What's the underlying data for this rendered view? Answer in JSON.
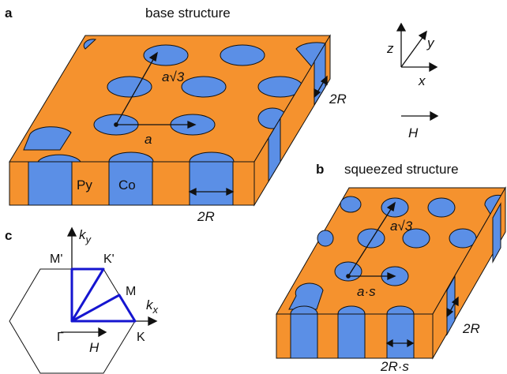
{
  "panel_a": {
    "letter": "a",
    "title": "base structure",
    "lattice_const": "a",
    "lattice_vec": "a√3",
    "radius_label": "2R",
    "py_label": "Py",
    "co_label": "Co",
    "diam_label": "2R"
  },
  "panel_b": {
    "letter": "b",
    "title": "squeezed structure",
    "lattice_const": "a·s",
    "lattice_vec": "a√3",
    "radius_label": "2R",
    "diam_label": "2R·s"
  },
  "panel_c": {
    "letter": "c",
    "ky_label": "k_y",
    "kx_label": "k_x",
    "gamma": "Γ",
    "K": "K",
    "K_prime": "K'",
    "M": "M",
    "M_prime": "M'",
    "field": "H"
  },
  "axes": {
    "z": "z",
    "y": "y",
    "x": "x",
    "field": "H"
  },
  "colors": {
    "py": "#F5922E",
    "co": "#5B8FE6",
    "outline": "#111111",
    "path": "#1515D0"
  }
}
